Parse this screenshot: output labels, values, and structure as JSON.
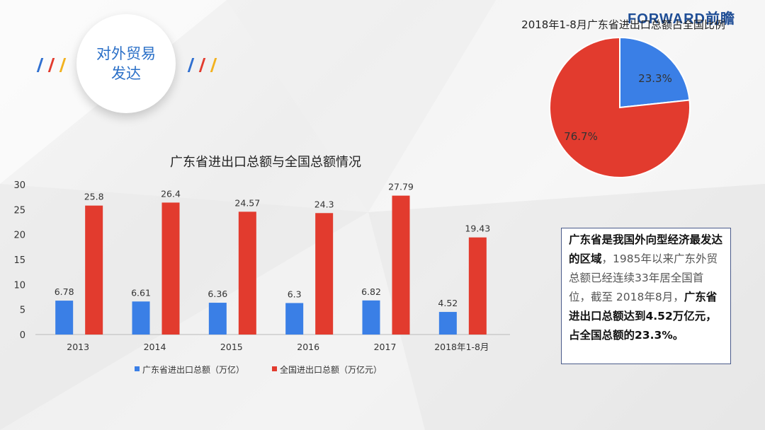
{
  "header": {
    "brand_en": "FORWARD",
    "brand_cn": "前瞻",
    "badge_line1": "对外贸易",
    "badge_line2": "发达"
  },
  "colors": {
    "guangdong": "#3a7fe6",
    "national": "#e23b2e",
    "badge_text": "#2a6fc7"
  },
  "chart_data": [
    {
      "type": "bar",
      "title": "广东省进出口总额与全国总额情况",
      "categories": [
        "2013",
        "2014",
        "2015",
        "2016",
        "2017",
        "2018年1-8月"
      ],
      "series": [
        {
          "name": "广东省进出口总额（万亿）",
          "values": [
            6.78,
            6.61,
            6.36,
            6.3,
            6.82,
            4.52
          ],
          "labels": [
            "6.78",
            "6.61",
            "6.36",
            "6.3",
            "6.82",
            "4.52"
          ]
        },
        {
          "name": "全国进出口总额（万亿元）",
          "values": [
            25.8,
            26.4,
            24.57,
            24.3,
            27.79,
            19.43
          ],
          "labels": [
            "25.8",
            "26.4",
            "24.57",
            "24.3",
            "27.79",
            "19.43"
          ]
        }
      ],
      "ylim": [
        0,
        30
      ],
      "yticks": [
        "0",
        "5",
        "10",
        "15",
        "20",
        "25",
        "30"
      ],
      "grid": false,
      "legend": "bottom"
    },
    {
      "type": "pie",
      "title": "2018年1-8月广东省进出口总额占全国比例",
      "slices": [
        {
          "value": 23.3,
          "label": "23.3%"
        },
        {
          "value": 76.7,
          "label": "76.7%"
        }
      ]
    }
  ],
  "textbox": {
    "p1_bold": "广东省是我国外向型经济最发达的区域",
    "p1_text": "，1985年以来广东外贸总额已经连续33年居全国首位，截至 2018年8月，",
    "p2_bold": "广东省进出口总额达到4.52万亿元，占全国总额的23.3%。"
  }
}
